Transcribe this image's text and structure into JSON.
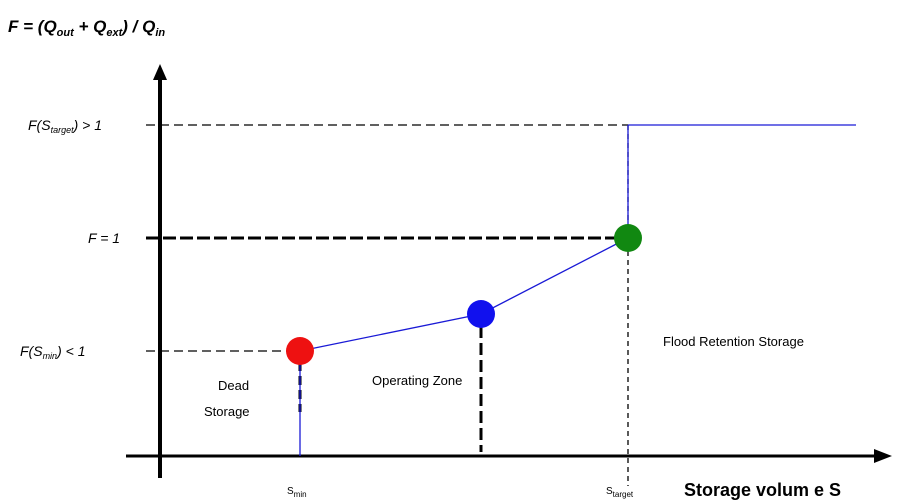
{
  "title": {
    "F": "F",
    "eq_open": " = (",
    "Q1": "Q",
    "Q1_sub": "out",
    "plus": " + ",
    "Q2": "Q",
    "Q2_sub": "ext",
    "close_div": ") / ",
    "Q3": "Q",
    "Q3_sub": "in"
  },
  "y_labels": {
    "target": {
      "prefix": "F(S",
      "sub": "target",
      "suffix": ") > 1"
    },
    "one": {
      "text": "F = 1"
    },
    "min": {
      "prefix": "F(S",
      "sub": "min",
      "suffix": ") < 1"
    }
  },
  "x_labels": {
    "smin": {
      "main": "S",
      "sub": "min"
    },
    "starget": {
      "main": "S",
      "sub": "target"
    }
  },
  "x_axis_title": "Storage volum e S",
  "zones": {
    "dead_line1": "Dead",
    "dead_line2": "Storage",
    "operating": "Operating Zone",
    "flood": "Flood Retention Storage"
  },
  "colors": {
    "axis": "#000000",
    "curve": "#1a1ad6",
    "point_min": "#ee1111",
    "point_mid": "#1111ee",
    "point_target": "#118811"
  },
  "chart_data": {
    "type": "line",
    "x": [
      "S_min",
      "intermediate",
      "S_target"
    ],
    "y": [
      "F(S_min) < 1",
      "between",
      "F = 1"
    ],
    "notes": "Piecewise: vertical at S_min up to F(S_min), linear rise to F = 1 at S_target, vertical jump to F(S_target) > 1, then flat."
  }
}
